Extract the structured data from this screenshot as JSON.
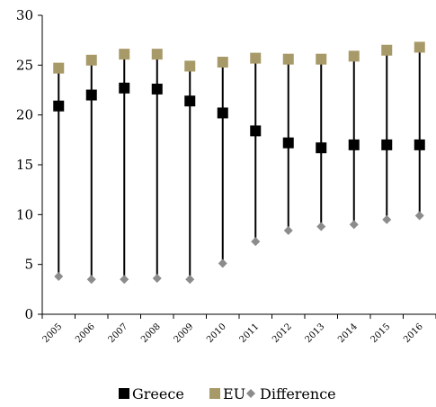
{
  "chart_data": {
    "type": "scatter",
    "categories": [
      "2005",
      "2006",
      "2007",
      "2008",
      "2009",
      "2010",
      "2011",
      "2012",
      "2013",
      "2014",
      "2015",
      "2016"
    ],
    "series": [
      {
        "name": "Greece",
        "values": [
          20.9,
          22.0,
          22.7,
          22.6,
          21.4,
          20.2,
          18.4,
          17.2,
          16.7,
          17.0,
          17.0,
          17.0
        ],
        "color": "#000000",
        "marker": "square"
      },
      {
        "name": "EU",
        "values": [
          24.7,
          25.5,
          26.1,
          26.1,
          24.9,
          25.3,
          25.7,
          25.6,
          25.6,
          25.9,
          26.5,
          26.8
        ],
        "color": "#a89968",
        "marker": "square"
      },
      {
        "name": "Difference",
        "values": [
          3.8,
          3.5,
          3.5,
          3.6,
          3.5,
          5.1,
          7.3,
          8.4,
          8.8,
          9.0,
          9.5,
          9.9
        ],
        "color": "#8c8c8c",
        "marker": "diamond"
      }
    ],
    "ylim": [
      0,
      30
    ],
    "yticks": [
      0,
      5,
      10,
      15,
      20,
      25,
      30
    ],
    "vertical_lines": "high-low from Difference to EU",
    "grid": false,
    "legend_position": "bottom"
  }
}
